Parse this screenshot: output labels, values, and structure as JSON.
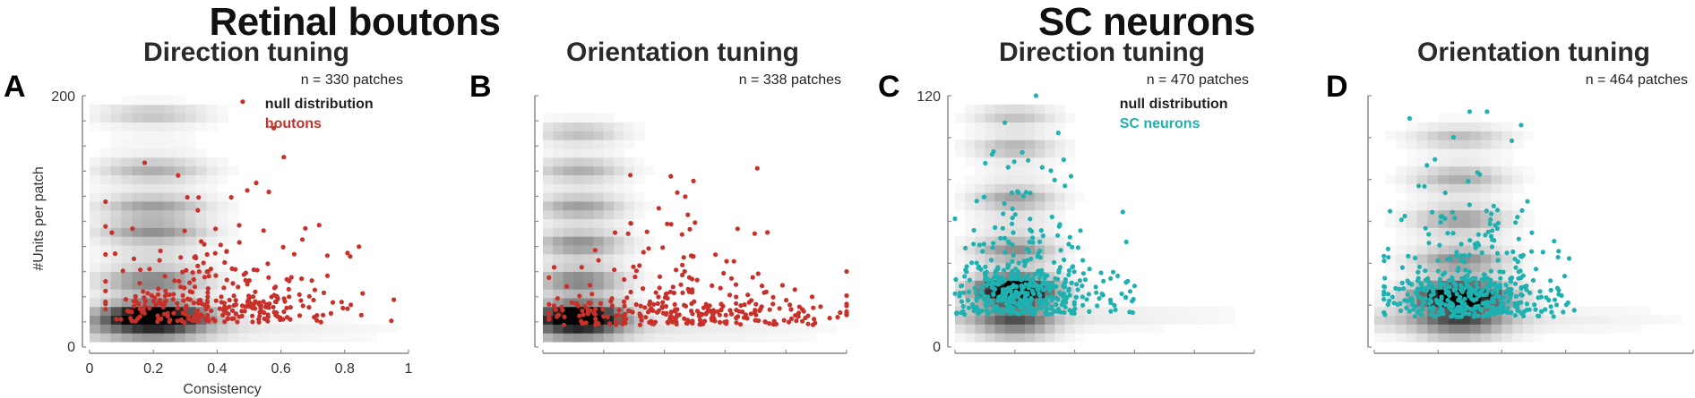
{
  "group_titles": [
    "Retinal boutons",
    "SC neurons"
  ],
  "colors": {
    "boutons": "#c8302a",
    "sc_neurons": "#1fb0b0",
    "axis": "#777777"
  },
  "chart_data": [
    {
      "panel": "A",
      "type": "scatter",
      "group": "Retinal boutons",
      "title": "Direction tuning",
      "annotation": "n = 330 patches",
      "legend": [
        "null distribution",
        "boutons"
      ],
      "legend_placement": "top-right",
      "xlabel": "Consistency",
      "ylabel": "#Units per patch",
      "xlim": [
        0,
        1
      ],
      "ylim": [
        0,
        200
      ],
      "x_ticks": [
        0,
        0.2,
        0.4,
        0.6,
        0.8,
        1
      ],
      "x_tick_labels": [
        "0",
        "0.2",
        "0.4",
        "0.6",
        "0.8",
        "1"
      ],
      "y_tick_labels": [
        "0",
        "200"
      ],
      "y_minor_ticks": 10,
      "series_color": "boutons",
      "n_points": 330,
      "points_are_approximate": true,
      "point_distribution": {
        "x_center": 0.42,
        "x_spread": 0.2,
        "x_min": 0.05,
        "x_max": 1.0,
        "y_peak": 25,
        "y_max": 195
      },
      "null_density": {
        "x_center": 0.2,
        "x_width": 0.16,
        "y_peak": 20,
        "bands": [
          20,
          50,
          90,
          110,
          140,
          185
        ]
      }
    },
    {
      "panel": "B",
      "type": "scatter",
      "group": "Retinal boutons",
      "title": "Orientation tuning",
      "annotation": "n = 338 patches",
      "legend": [],
      "xlim": [
        0,
        1
      ],
      "ylim": [
        0,
        200
      ],
      "x_ticks": [
        0,
        0.2,
        0.4,
        0.6,
        0.8,
        1
      ],
      "y_minor_ticks": 10,
      "series_color": "boutons",
      "n_points": 338,
      "points_are_approximate": true,
      "point_distribution": {
        "x_center": 0.5,
        "x_spread": 0.25,
        "x_min": 0.02,
        "x_max": 1.0,
        "y_peak": 20,
        "y_max": 185
      },
      "null_density": {
        "x_center": 0.12,
        "x_width": 0.14,
        "y_peak": 20,
        "bands": [
          20,
          50,
          80,
          110,
          140,
          170
        ]
      }
    },
    {
      "panel": "C",
      "type": "scatter",
      "group": "SC neurons",
      "title": "Direction tuning",
      "annotation": "n = 470 patches",
      "legend": [
        "null distribution",
        "SC neurons"
      ],
      "legend_placement": "top-right",
      "xlim": [
        0,
        1
      ],
      "ylim": [
        0,
        120
      ],
      "x_ticks": [
        0,
        0.2,
        0.4,
        0.6,
        0.8,
        1
      ],
      "y_tick_labels": [
        "0",
        "120"
      ],
      "y_minor_ticks": 6,
      "series_color": "sc_neurons",
      "n_points": 470,
      "points_are_approximate": true,
      "point_distribution": {
        "x_center": 0.22,
        "x_spread": 0.1,
        "x_min": 0.0,
        "x_max": 1.0,
        "y_peak": 25,
        "y_max": 120
      },
      "null_density": {
        "x_center": 0.2,
        "x_width": 0.13,
        "y_peak": 25,
        "bands": [
          10,
          25,
          45,
          70,
          95,
          110
        ]
      }
    },
    {
      "panel": "D",
      "type": "scatter",
      "group": "SC neurons",
      "title": "Orientation tuning",
      "annotation": "n = 464 patches",
      "legend": [],
      "xlim": [
        0,
        1
      ],
      "ylim": [
        0,
        120
      ],
      "x_ticks": [
        0,
        0.2,
        0.4,
        0.6,
        0.8,
        1
      ],
      "y_minor_ticks": 6,
      "series_color": "sc_neurons",
      "n_points": 464,
      "points_are_approximate": true,
      "point_distribution": {
        "x_center": 0.3,
        "x_spread": 0.13,
        "x_min": 0.03,
        "x_max": 1.0,
        "y_peak": 22,
        "y_max": 112
      },
      "null_density": {
        "x_center": 0.27,
        "x_width": 0.14,
        "y_peak": 22,
        "bands": [
          10,
          22,
          40,
          60,
          80,
          100
        ]
      }
    }
  ]
}
